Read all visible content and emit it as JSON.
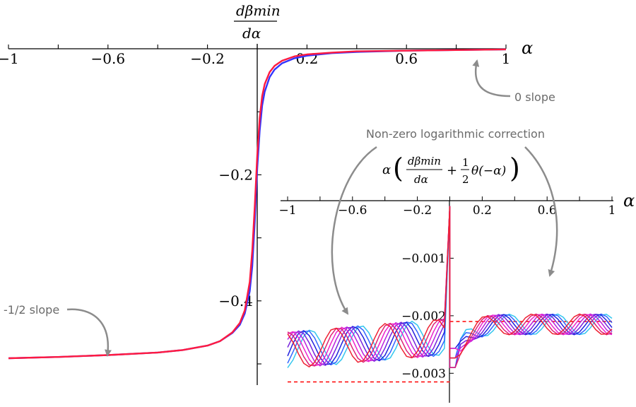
{
  "chart_data": [
    {
      "type": "line",
      "xlabel": "α",
      "ylabel_top": "dβmin",
      "ylabel_bottom": "dα",
      "xlim": [
        -1,
        1
      ],
      "ylim": [
        -0.5,
        0
      ],
      "x_ticks": [
        {
          "value": -1,
          "label": "−1"
        },
        {
          "value": -0.6,
          "label": "−0.6"
        },
        {
          "value": -0.2,
          "label": "−0.2"
        },
        {
          "value": 0.2,
          "label": "0.2"
        },
        {
          "value": 0.6,
          "label": "0.6"
        },
        {
          "value": 1,
          "label": "1"
        }
      ],
      "y_ticks": [
        {
          "value": -0.2,
          "label": "−0.2"
        },
        {
          "value": -0.4,
          "label": "−0.4"
        }
      ],
      "series": [
        {
          "color": "#3333ff",
          "x": [
            -1,
            -0.8,
            -0.6,
            -0.4,
            -0.3,
            -0.2,
            -0.15,
            -0.1,
            -0.07,
            -0.05,
            -0.03,
            -0.02,
            -0.01,
            0,
            0.01,
            0.02,
            0.03,
            0.05,
            0.07,
            0.1,
            0.15,
            0.2,
            0.3,
            0.4,
            0.6,
            0.8,
            1
          ],
          "y": [
            -0.491,
            -0.489,
            -0.486,
            -0.482,
            -0.478,
            -0.471,
            -0.464,
            -0.451,
            -0.438,
            -0.42,
            -0.385,
            -0.345,
            -0.275,
            -0.19,
            -0.13,
            -0.09,
            -0.068,
            -0.045,
            -0.033,
            -0.023,
            -0.015,
            -0.011,
            -0.007,
            -0.005,
            -0.003,
            -0.002,
            -0.001
          ]
        },
        {
          "color": "#ff1a40",
          "x": [
            -1,
            -0.8,
            -0.6,
            -0.4,
            -0.3,
            -0.2,
            -0.15,
            -0.1,
            -0.07,
            -0.05,
            -0.03,
            -0.02,
            -0.01,
            0,
            0.01,
            0.02,
            0.03,
            0.05,
            0.07,
            0.1,
            0.15,
            0.2,
            0.3,
            0.4,
            0.6,
            0.8,
            1
          ],
          "y": [
            -0.491,
            -0.489,
            -0.486,
            -0.482,
            -0.478,
            -0.471,
            -0.464,
            -0.45,
            -0.435,
            -0.415,
            -0.37,
            -0.32,
            -0.25,
            -0.17,
            -0.11,
            -0.075,
            -0.056,
            -0.037,
            -0.027,
            -0.019,
            -0.012,
            -0.009,
            -0.006,
            -0.004,
            -0.003,
            -0.002,
            -0.001
          ]
        }
      ],
      "annotations": [
        {
          "text": "0 slope"
        },
        {
          "text": "-1/2 slope"
        }
      ]
    },
    {
      "type": "line",
      "title": "Non-zero logarithmic correction",
      "ylabel_prefix": "α",
      "ylabel_frac_top": "dβmin",
      "ylabel_frac_bottom": "dα",
      "ylabel_plus": "+",
      "ylabel_half_top": "1",
      "ylabel_half_bottom": "2",
      "ylabel_theta": "θ(−α)",
      "xlabel": "α",
      "xlim": [
        -1,
        1
      ],
      "ylim": [
        -0.0035,
        0
      ],
      "x_ticks": [
        {
          "value": -1,
          "label": "−1"
        },
        {
          "value": -0.6,
          "label": "−0.6"
        },
        {
          "value": -0.2,
          "label": "−0.2"
        },
        {
          "value": 0.2,
          "label": "0.2"
        },
        {
          "value": 0.6,
          "label": "0.6"
        },
        {
          "value": 1,
          "label": "1"
        }
      ],
      "y_ticks": [
        {
          "value": -0.001,
          "label": "−0.001"
        },
        {
          "value": -0.002,
          "label": "−0.002"
        },
        {
          "value": -0.003,
          "label": "−0.003"
        }
      ],
      "reference_lines": [
        {
          "x_from": -1,
          "x_to": 0,
          "y": -0.00315,
          "color": "#ff0000"
        },
        {
          "x_from": 0,
          "x_to": 1,
          "y": -0.0021,
          "color": "#ff0000"
        }
      ],
      "series": [
        {
          "color": "#33c6ee",
          "phase": 0.0
        },
        {
          "color": "#3366ff",
          "phase": 0.25
        },
        {
          "color": "#2222dd",
          "phase": 0.5
        },
        {
          "color": "#7722dd",
          "phase": 0.75
        },
        {
          "color": "#bb22dd",
          "phase": 1.0
        },
        {
          "color": "#ee22cc",
          "phase": 1.25
        },
        {
          "color": "#dd2277",
          "phase": 1.5
        },
        {
          "color": "#ee2233",
          "phase": 1.75
        }
      ]
    }
  ]
}
